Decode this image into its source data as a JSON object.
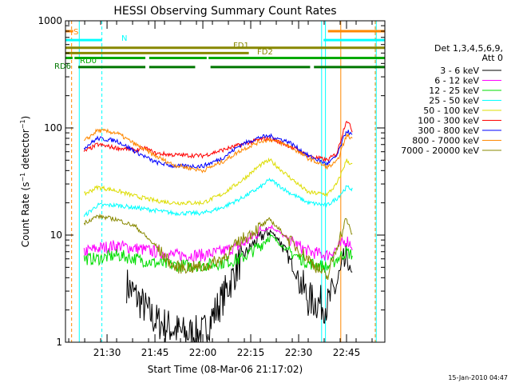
{
  "chart_data": {
    "type": "line",
    "title": "HESSI Observing Summary Count Rates",
    "xlabel": "Start Time (08-Mar-06 21:17:02)",
    "ylabel": "Count Rate (s⁻¹ detector⁻¹)",
    "ylabel_parts": [
      "Count Rate (s",
      "−1",
      " detector",
      "−1",
      ")"
    ],
    "y_scale": "log",
    "ylim": [
      1,
      1000
    ],
    "xlim_minutes": [
      21.283,
      22.95
    ],
    "x_unit": "time of day (hours)",
    "x_ticks": [
      {
        "label": "21:30",
        "value": 21.5
      },
      {
        "label": "21:45",
        "value": 21.75
      },
      {
        "label": "22:00",
        "value": 22.0
      },
      {
        "label": "22:15",
        "value": 22.25
      },
      {
        "label": "22:30",
        "value": 22.5
      },
      {
        "label": "22:45",
        "value": 22.75
      }
    ],
    "y_ticks": [
      {
        "label": "1",
        "value": 1
      },
      {
        "label": "10",
        "value": 10
      },
      {
        "label": "100",
        "value": 100
      },
      {
        "label": "1000",
        "value": 1000
      }
    ],
    "legend_header": [
      "Det 1,3,4,5,6,9,",
      "Att 0"
    ],
    "legend_placement": "right",
    "grid": false,
    "series": [
      {
        "name": "3 - 6 keV",
        "color": "#000000",
        "x": [
          21.38,
          21.5,
          21.6,
          21.75,
          21.9,
          22.0,
          22.1,
          22.2,
          22.28,
          22.35,
          22.4,
          22.5,
          22.55,
          22.65,
          22.7,
          22.75,
          22.78
        ],
        "y": [
          null,
          null,
          3.5,
          1.6,
          1.2,
          1.2,
          2.5,
          6,
          9,
          11,
          9,
          4,
          2.5,
          2.2,
          3.5,
          6,
          4
        ]
      },
      {
        "name": "6 - 12 keV",
        "color": "#ff00ff",
        "x": [
          21.38,
          21.45,
          21.55,
          21.65,
          21.75,
          21.85,
          22.0,
          22.1,
          22.2,
          22.3,
          22.36,
          22.45,
          22.55,
          22.65,
          22.7,
          22.75,
          22.78
        ],
        "y": [
          7,
          7.5,
          8,
          7.5,
          7,
          6.5,
          6.5,
          7,
          8,
          11,
          12,
          9,
          7,
          6.5,
          7.5,
          9,
          8
        ]
      },
      {
        "name": "12 - 25 keV",
        "color": "#00dd00",
        "x": [
          21.38,
          21.45,
          21.55,
          21.65,
          21.75,
          21.85,
          22.0,
          22.1,
          22.2,
          22.3,
          22.35,
          22.45,
          22.55,
          22.65,
          22.7,
          22.75,
          22.78
        ],
        "y": [
          6,
          6,
          6.5,
          6,
          5.5,
          5.2,
          5.2,
          5.5,
          6,
          8,
          10,
          7,
          5.5,
          5,
          6,
          7,
          6.5
        ]
      },
      {
        "name": "25 - 50 keV",
        "color": "#00ffff",
        "x": [
          21.38,
          21.45,
          21.55,
          21.65,
          21.75,
          21.85,
          22.0,
          22.1,
          22.2,
          22.3,
          22.35,
          22.45,
          22.55,
          22.65,
          22.7,
          22.75,
          22.78
        ],
        "y": [
          15,
          19,
          19,
          18,
          17,
          16,
          16,
          18,
          22,
          28,
          33,
          25,
          20,
          19,
          22,
          28,
          27
        ]
      },
      {
        "name": "50 - 100 keV",
        "color": "#dddd00",
        "x": [
          21.38,
          21.45,
          21.55,
          21.65,
          21.75,
          21.85,
          22.0,
          22.1,
          22.2,
          22.3,
          22.35,
          22.45,
          22.55,
          22.65,
          22.7,
          22.75,
          22.78
        ],
        "y": [
          24,
          28,
          26,
          23,
          21,
          20,
          20,
          24,
          32,
          45,
          50,
          35,
          25,
          24,
          30,
          50,
          45
        ]
      },
      {
        "name": "100 - 300 keV",
        "color": "#ff0000",
        "x": [
          21.38,
          21.45,
          21.55,
          21.65,
          21.7,
          21.75,
          21.85,
          22.0,
          22.1,
          22.2,
          22.3,
          22.35,
          22.45,
          22.55,
          22.65,
          22.7,
          22.75,
          22.78
        ],
        "y": [
          60,
          70,
          65,
          62,
          65,
          58,
          56,
          55,
          62,
          70,
          78,
          80,
          68,
          55,
          50,
          58,
          120,
          95
        ]
      },
      {
        "name": "300 - 800 keV",
        "color": "#0000ff",
        "x": [
          21.38,
          21.45,
          21.55,
          21.65,
          21.75,
          21.85,
          22.0,
          22.1,
          22.2,
          22.3,
          22.35,
          22.45,
          22.55,
          22.65,
          22.7,
          22.75,
          22.78
        ],
        "y": [
          65,
          80,
          76,
          60,
          48,
          44,
          44,
          52,
          70,
          82,
          84,
          74,
          55,
          46,
          55,
          95,
          85
        ]
      },
      {
        "name": "800 - 7000 keV",
        "color": "#ff8800",
        "x": [
          21.38,
          21.45,
          21.55,
          21.65,
          21.75,
          21.85,
          22.0,
          22.1,
          22.2,
          22.3,
          22.35,
          22.45,
          22.55,
          22.65,
          22.7,
          22.75,
          22.78
        ],
        "y": [
          75,
          95,
          90,
          70,
          55,
          45,
          40,
          48,
          62,
          75,
          78,
          68,
          52,
          43,
          48,
          85,
          80
        ]
      },
      {
        "name": "7000 - 20000 keV",
        "color": "#888800",
        "x": [
          21.38,
          21.45,
          21.55,
          21.65,
          21.75,
          21.85,
          22.0,
          22.1,
          22.2,
          22.3,
          22.35,
          22.45,
          22.55,
          22.65,
          22.7,
          22.75,
          22.78
        ],
        "y": [
          13,
          15,
          14,
          12,
          8,
          5,
          5,
          6,
          9,
          12,
          14,
          9,
          6,
          4,
          8,
          14,
          10
        ]
      }
    ],
    "flags": [
      {
        "label": "S",
        "color": "#ff8800",
        "y": 800
      },
      {
        "label": "N",
        "color": "#00ffff",
        "y": 660
      },
      {
        "label": "FD1",
        "color": "#888800",
        "y": 560
      },
      {
        "label": "FD2",
        "color": "#888800",
        "y": 500
      },
      {
        "label": "RD0",
        "color": "#00aa00",
        "y": 450
      },
      {
        "label": "RD6",
        "color": "#007700",
        "y": 370
      }
    ],
    "footer_date": "15-Jan-2010 04:47"
  }
}
